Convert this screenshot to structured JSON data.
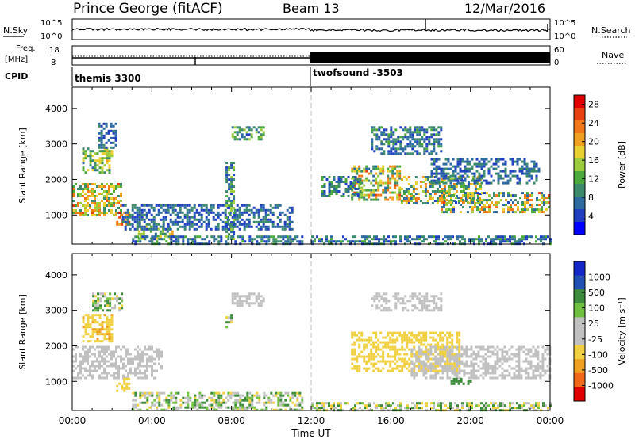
{
  "header": {
    "station": "Prince George (fitACF)",
    "beam": "Beam 13",
    "date": "12/Mar/2016"
  },
  "labels": {
    "nsky": "N.Sky",
    "nsearch": "N.Search",
    "freq": "Freq.",
    "freq_unit": "[MHz]",
    "nave": "Nave",
    "cpid": "CPID",
    "cpid_left": "themis 3300",
    "cpid_right": "twofsound -3503",
    "noise_tick_top": "10^5",
    "noise_tick_bot": "10^0",
    "freq_tick_top": "18",
    "freq_tick_bot": "8",
    "nave_tick_top": "60",
    "nave_tick_bot": "0",
    "time_title": "Time UT"
  },
  "colors": {
    "power": [
      "#0000ff",
      "#2040c0",
      "#2c6aa0",
      "#3c8a6c",
      "#4caa3c",
      "#9ccc3c",
      "#e8d030",
      "#f0a020",
      "#f07818",
      "#e84010",
      "#e00000"
    ],
    "velocity": [
      "#1428c8",
      "#2050b4",
      "#3c8c3c",
      "#70c040",
      "#c0c0c0",
      "#c0c0c0",
      "#f0d040",
      "#f0a020",
      "#f06818",
      "#e00000"
    ]
  },
  "chart_data": [
    {
      "type": "heatmap",
      "name": "power",
      "ylabel": "Slant Range [km]",
      "xlabel": "",
      "x_ticks": [
        "00:00",
        "04:00",
        "08:00",
        "12:00",
        "16:00",
        "20:00",
        "00:00"
      ],
      "x_range_hours": [
        0,
        24
      ],
      "y_ticks": [
        1000,
        2000,
        3000,
        4000
      ],
      "ylim": [
        180,
        4600
      ],
      "colorbar": {
        "label": "Power [dB]",
        "ticks": [
          4,
          8,
          12,
          16,
          20,
          24,
          28
        ],
        "range": [
          0,
          30
        ]
      },
      "blobs": [
        {
          "t": [
            0.0,
            2.5
          ],
          "r": [
            1000,
            1900
          ],
          "v": [
            8,
            26
          ]
        },
        {
          "t": [
            2.2,
            2.9
          ],
          "r": [
            700,
            1100
          ],
          "v": [
            18,
            30
          ]
        },
        {
          "t": [
            0.5,
            2.0
          ],
          "r": [
            2200,
            2900
          ],
          "v": [
            6,
            20
          ]
        },
        {
          "t": [
            1.3,
            2.2
          ],
          "r": [
            2900,
            3600
          ],
          "v": [
            2,
            10
          ]
        },
        {
          "t": [
            3.3,
            5.0
          ],
          "r": [
            300,
            700
          ],
          "v": [
            6,
            22
          ]
        },
        {
          "t": [
            3.0,
            11.5
          ],
          "r": [
            200,
            420
          ],
          "v": [
            2,
            12
          ]
        },
        {
          "t": [
            2.5,
            11.0
          ],
          "r": [
            600,
            1300
          ],
          "v": [
            2,
            10
          ]
        },
        {
          "t": [
            7.7,
            8.1
          ],
          "r": [
            300,
            2500
          ],
          "v": [
            2,
            16
          ]
        },
        {
          "t": [
            8.0,
            9.6
          ],
          "r": [
            3100,
            3500
          ],
          "v": [
            4,
            16
          ]
        },
        {
          "t": [
            12.0,
            24.0
          ],
          "r": [
            200,
            420
          ],
          "v": [
            2,
            12
          ]
        },
        {
          "t": [
            14.0,
            16.5
          ],
          "r": [
            1400,
            2400
          ],
          "v": [
            6,
            26
          ]
        },
        {
          "t": [
            16.5,
            20.5
          ],
          "r": [
            1300,
            2100
          ],
          "v": [
            4,
            24
          ]
        },
        {
          "t": [
            18.5,
            24.0
          ],
          "r": [
            1050,
            1650
          ],
          "v": [
            4,
            26
          ]
        },
        {
          "t": [
            15.0,
            18.5
          ],
          "r": [
            2700,
            3500
          ],
          "v": [
            2,
            12
          ]
        },
        {
          "t": [
            12.5,
            14.5
          ],
          "r": [
            1500,
            2100
          ],
          "v": [
            2,
            12
          ]
        },
        {
          "t": [
            18.0,
            23.5
          ],
          "r": [
            1900,
            2600
          ],
          "v": [
            2,
            10
          ]
        }
      ]
    },
    {
      "type": "heatmap",
      "name": "velocity",
      "ylabel": "Slant Range [km]",
      "xlabel": "Time UT",
      "x_ticks": [
        "00:00",
        "04:00",
        "08:00",
        "12:00",
        "16:00",
        "20:00",
        "00:00"
      ],
      "x_range_hours": [
        0,
        24
      ],
      "y_ticks": [
        1000,
        2000,
        3000,
        4000
      ],
      "ylim": [
        180,
        4600
      ],
      "colorbar": {
        "label": "Velocity [m s⁻¹]",
        "ticks": [
          1000,
          500,
          100,
          25,
          -25,
          -100,
          -500,
          -1000
        ]
      },
      "blobs": [
        {
          "t": [
            0.0,
            4.5
          ],
          "r": [
            1100,
            2000
          ],
          "v": [
            -20,
            20
          ]
        },
        {
          "t": [
            0.5,
            2.0
          ],
          "r": [
            2100,
            2900
          ],
          "v": [
            -600,
            -100
          ]
        },
        {
          "t": [
            2.2,
            2.9
          ],
          "r": [
            700,
            1100
          ],
          "v": [
            -300,
            -100
          ]
        },
        {
          "t": [
            1.0,
            2.5
          ],
          "r": [
            3000,
            3500
          ],
          "v": [
            -200,
            300
          ]
        },
        {
          "t": [
            3.0,
            11.5
          ],
          "r": [
            200,
            700
          ],
          "v": [
            -150,
            200
          ]
        },
        {
          "t": [
            7.7,
            8.1
          ],
          "r": [
            2500,
            2900
          ],
          "v": [
            -200,
            200
          ]
        },
        {
          "t": [
            8.0,
            9.6
          ],
          "r": [
            3100,
            3500
          ],
          "v": [
            -20,
            20
          ]
        },
        {
          "t": [
            14.0,
            19.5
          ],
          "r": [
            1300,
            2400
          ],
          "v": [
            -500,
            -100
          ]
        },
        {
          "t": [
            17.0,
            24.0
          ],
          "r": [
            1100,
            2000
          ],
          "v": [
            -20,
            20
          ]
        },
        {
          "t": [
            12.0,
            24.0
          ],
          "r": [
            200,
            420
          ],
          "v": [
            -200,
            200
          ]
        },
        {
          "t": [
            15.0,
            18.5
          ],
          "r": [
            3000,
            3500
          ],
          "v": [
            -20,
            20
          ]
        },
        {
          "t": [
            19.0,
            20.0
          ],
          "r": [
            900,
            1100
          ],
          "v": [
            100,
            300
          ]
        }
      ]
    }
  ]
}
